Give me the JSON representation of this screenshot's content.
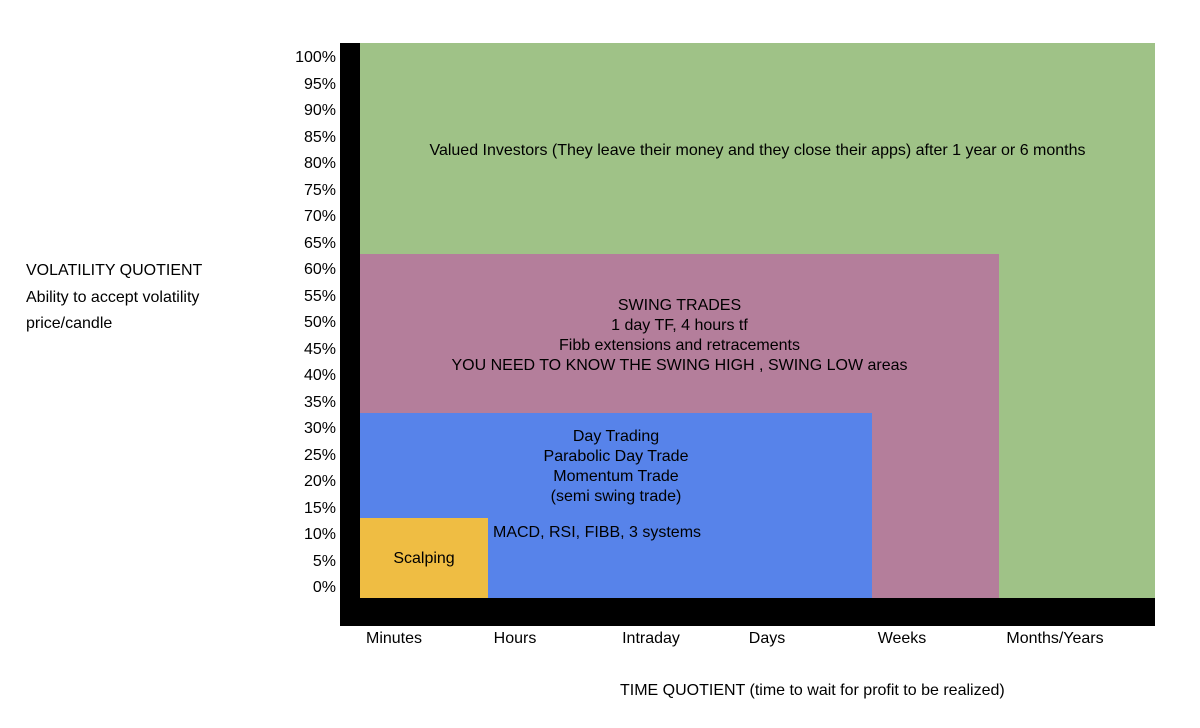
{
  "y_axis": {
    "title": "VOLATILITY QUOTIENT",
    "subtitle_line1": "Ability to accept volatility",
    "subtitle_line2": "price/candle",
    "ticks": [
      "100%",
      "95%",
      "90%",
      "85%",
      "80%",
      "75%",
      "70%",
      "65%",
      "60%",
      "55%",
      "50%",
      "45%",
      "40%",
      "35%",
      "30%",
      "25%",
      "20%",
      "15%",
      "10%",
      "5%",
      "0%"
    ]
  },
  "x_axis": {
    "title": "TIME QUOTIENT (time to wait for profit to be realized)",
    "categories": [
      "Minutes",
      "Hours",
      "Intraday",
      "Days",
      "Weeks",
      "Months/Years"
    ]
  },
  "regions": {
    "valued_investors": {
      "text": "Valued Investors (They leave their money and they close their apps) after 1 year or 6 months",
      "color": "#9fc287"
    },
    "swing_trades": {
      "lines": [
        "SWING TRADES",
        "1 day TF, 4 hours tf",
        "Fibb extensions and retracements",
        "YOU NEED TO KNOW THE SWING HIGH , SWING LOW areas"
      ],
      "color": "#b47e9b"
    },
    "day_trading": {
      "lines": [
        "Day Trading",
        "Parabolic Day Trade",
        "Momentum Trade",
        "(semi swing trade)"
      ],
      "note": "MACD, RSI, FIBB, 3 systems",
      "color": "#5783ea"
    },
    "scalping": {
      "text": "Scalping",
      "color": "#efbd43"
    }
  },
  "axis_color": "#000000"
}
